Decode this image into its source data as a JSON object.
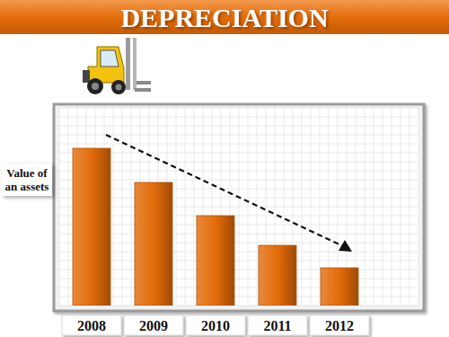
{
  "chart_data": {
    "type": "bar",
    "title": "DEPRECIATION",
    "y_label": "Value of an assets",
    "categories": [
      "2008",
      "2009",
      "2010",
      "2011",
      "2012"
    ],
    "values": [
      175,
      137,
      100,
      67,
      42
    ],
    "color": "#e36c0a",
    "ylim": [
      0,
      220
    ],
    "yticks": [
      0,
      10,
      20,
      30,
      40,
      50,
      60,
      70,
      80,
      90,
      100,
      110,
      120,
      130,
      140,
      150,
      160,
      170,
      180,
      190,
      200,
      210,
      220
    ],
    "grid": true,
    "tick_labels": false
  }
}
